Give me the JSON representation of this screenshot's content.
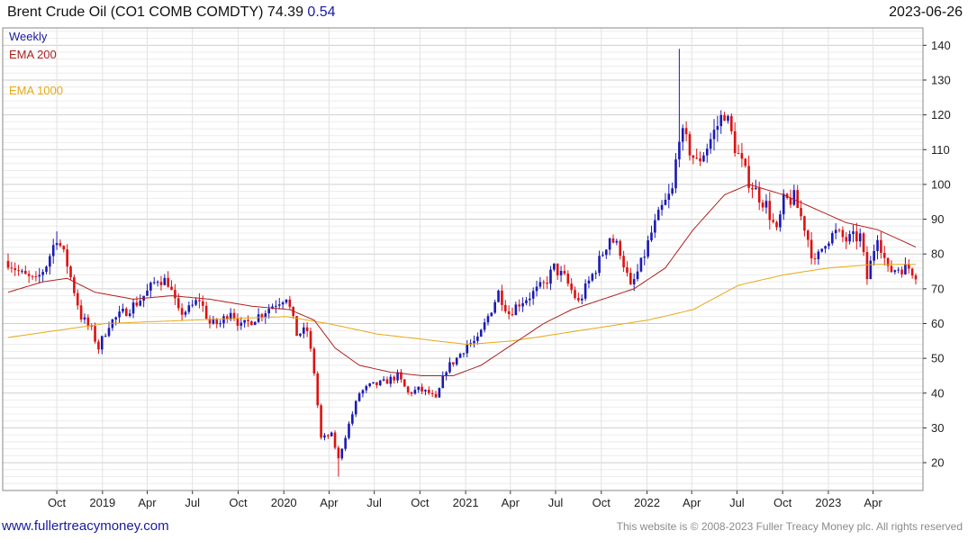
{
  "header": {
    "title": "Brent Crude Oil  (CO1 COMB COMDTY) 74.39",
    "change": "0.54",
    "date": "2023-06-26"
  },
  "footer": {
    "site": "www.fullertreacymoney.com",
    "copyright": "This website is © 2008-2023 Fuller Treacy Money plc. All rights reserved"
  },
  "colors": {
    "up": "#1a1ab4",
    "down": "#dd1111",
    "ema200": "#b02020",
    "ema1000": "#e8a814",
    "grid": "#e4e4e4",
    "axis": "#333333",
    "weekly_label": "#1a1aa0"
  },
  "chart_data": {
    "type": "candlestick",
    "interval": "Weekly",
    "legend": [
      "Weekly",
      "EMA 200",
      "EMA 1000"
    ],
    "legend_position": "top-left",
    "y_axis_side": "right",
    "grid": true,
    "ylim": [
      12,
      145
    ],
    "yticks": [
      20,
      30,
      40,
      50,
      60,
      70,
      80,
      90,
      100,
      110,
      120,
      130,
      140
    ],
    "x_range": [
      "2018-06-25",
      "2023-06-26"
    ],
    "xticks": [
      {
        "date": "2018-10-01",
        "label": "Oct"
      },
      {
        "date": "2019-01-01",
        "label": "2019"
      },
      {
        "date": "2019-04-01",
        "label": "Apr"
      },
      {
        "date": "2019-07-01",
        "label": "Jul"
      },
      {
        "date": "2019-10-01",
        "label": "Oct"
      },
      {
        "date": "2020-01-01",
        "label": "2020"
      },
      {
        "date": "2020-04-01",
        "label": "Apr"
      },
      {
        "date": "2020-07-01",
        "label": "Jul"
      },
      {
        "date": "2020-10-01",
        "label": "Oct"
      },
      {
        "date": "2021-01-01",
        "label": "2021"
      },
      {
        "date": "2021-04-01",
        "label": "Apr"
      },
      {
        "date": "2021-07-01",
        "label": "Jul"
      },
      {
        "date": "2021-10-01",
        "label": "Oct"
      },
      {
        "date": "2022-01-01",
        "label": "2022"
      },
      {
        "date": "2022-04-01",
        "label": "Apr"
      },
      {
        "date": "2022-07-01",
        "label": "Jul"
      },
      {
        "date": "2022-10-01",
        "label": "Oct"
      },
      {
        "date": "2023-01-01",
        "label": "2023"
      },
      {
        "date": "2023-04-01",
        "label": "Apr"
      }
    ],
    "close_anchors": [
      [
        "2018-06-25",
        78
      ],
      [
        "2018-07-23",
        74
      ],
      [
        "2018-08-20",
        72
      ],
      [
        "2018-09-10",
        77
      ],
      [
        "2018-10-01",
        85
      ],
      [
        "2018-10-22",
        77
      ],
      [
        "2018-11-19",
        62
      ],
      [
        "2018-12-10",
        58
      ],
      [
        "2018-12-24",
        53
      ],
      [
        "2019-01-14",
        60
      ],
      [
        "2019-02-11",
        63
      ],
      [
        "2019-03-11",
        66
      ],
      [
        "2019-04-01",
        69
      ],
      [
        "2019-04-22",
        73
      ],
      [
        "2019-05-13",
        72
      ],
      [
        "2019-06-03",
        63
      ],
      [
        "2019-06-24",
        64
      ],
      [
        "2019-07-15",
        67
      ],
      [
        "2019-08-05",
        60
      ],
      [
        "2019-08-26",
        60
      ],
      [
        "2019-09-16",
        64
      ],
      [
        "2019-10-07",
        59
      ],
      [
        "2019-10-28",
        61
      ],
      [
        "2019-11-18",
        63
      ],
      [
        "2019-12-16",
        66
      ],
      [
        "2020-01-06",
        68
      ],
      [
        "2020-01-27",
        57
      ],
      [
        "2020-02-17",
        58
      ],
      [
        "2020-03-02",
        46
      ],
      [
        "2020-03-16",
        27
      ],
      [
        "2020-04-06",
        28
      ],
      [
        "2020-04-20",
        21
      ],
      [
        "2020-05-11",
        31
      ],
      [
        "2020-06-01",
        40
      ],
      [
        "2020-06-22",
        42
      ],
      [
        "2020-07-20",
        43
      ],
      [
        "2020-08-17",
        45
      ],
      [
        "2020-09-07",
        40
      ],
      [
        "2020-09-28",
        41
      ],
      [
        "2020-10-19",
        40
      ],
      [
        "2020-11-02",
        38
      ],
      [
        "2020-11-23",
        47
      ],
      [
        "2020-12-14",
        50
      ],
      [
        "2021-01-04",
        54
      ],
      [
        "2021-01-25",
        55
      ],
      [
        "2021-02-15",
        62
      ],
      [
        "2021-03-08",
        69
      ],
      [
        "2021-03-29",
        63
      ],
      [
        "2021-04-19",
        66
      ],
      [
        "2021-05-10",
        68
      ],
      [
        "2021-06-07",
        71
      ],
      [
        "2021-06-28",
        76
      ],
      [
        "2021-07-19",
        73
      ],
      [
        "2021-08-16",
        66
      ],
      [
        "2021-09-06",
        72
      ],
      [
        "2021-09-27",
        78
      ],
      [
        "2021-10-18",
        85
      ],
      [
        "2021-11-08",
        81
      ],
      [
        "2021-11-29",
        70
      ],
      [
        "2021-12-20",
        77
      ],
      [
        "2022-01-10",
        86
      ],
      [
        "2022-01-31",
        93
      ],
      [
        "2022-02-21",
        98
      ],
      [
        "2022-03-07",
        115
      ],
      [
        "2022-03-21",
        112
      ],
      [
        "2022-04-11",
        106
      ],
      [
        "2022-05-02",
        111
      ],
      [
        "2022-05-23",
        117
      ],
      [
        "2022-06-06",
        121
      ],
      [
        "2022-06-27",
        111
      ],
      [
        "2022-07-18",
        103
      ],
      [
        "2022-08-08",
        98
      ],
      [
        "2022-08-29",
        94
      ],
      [
        "2022-09-19",
        86
      ],
      [
        "2022-10-03",
        95
      ],
      [
        "2022-10-24",
        96
      ],
      [
        "2022-11-14",
        88
      ],
      [
        "2022-12-05",
        77
      ],
      [
        "2022-12-26",
        84
      ],
      [
        "2023-01-16",
        86
      ],
      [
        "2023-02-06",
        84
      ],
      [
        "2023-03-06",
        85
      ],
      [
        "2023-03-20",
        73
      ],
      [
        "2023-04-10",
        86
      ],
      [
        "2023-05-01",
        75
      ],
      [
        "2023-05-22",
        76
      ],
      [
        "2023-06-12",
        76
      ],
      [
        "2023-06-26",
        74.39
      ]
    ],
    "ema200_anchors": [
      [
        "2018-06-25",
        69
      ],
      [
        "2018-09-03",
        72
      ],
      [
        "2018-10-22",
        73
      ],
      [
        "2018-12-17",
        69
      ],
      [
        "2019-03-04",
        67
      ],
      [
        "2019-05-20",
        68
      ],
      [
        "2019-08-05",
        67
      ],
      [
        "2019-10-28",
        65
      ],
      [
        "2020-01-13",
        64
      ],
      [
        "2020-03-02",
        61
      ],
      [
        "2020-04-13",
        53
      ],
      [
        "2020-06-01",
        48
      ],
      [
        "2020-08-03",
        46
      ],
      [
        "2020-10-05",
        45
      ],
      [
        "2020-12-07",
        45
      ],
      [
        "2021-02-01",
        48
      ],
      [
        "2021-04-05",
        54
      ],
      [
        "2021-06-07",
        60
      ],
      [
        "2021-08-02",
        64
      ],
      [
        "2021-10-04",
        67
      ],
      [
        "2021-12-06",
        70
      ],
      [
        "2022-02-07",
        76
      ],
      [
        "2022-04-04",
        87
      ],
      [
        "2022-06-06",
        97
      ],
      [
        "2022-07-25",
        100
      ],
      [
        "2022-10-03",
        97
      ],
      [
        "2022-12-05",
        93
      ],
      [
        "2023-02-06",
        89
      ],
      [
        "2023-04-10",
        87
      ],
      [
        "2023-06-26",
        82
      ]
    ],
    "ema1000_anchors": [
      [
        "2018-06-25",
        56
      ],
      [
        "2019-01-07",
        60
      ],
      [
        "2019-07-01",
        61
      ],
      [
        "2020-01-06",
        62
      ],
      [
        "2020-03-30",
        60
      ],
      [
        "2020-07-06",
        57
      ],
      [
        "2021-01-04",
        54
      ],
      [
        "2021-04-05",
        55
      ],
      [
        "2021-07-05",
        57
      ],
      [
        "2021-10-04",
        59
      ],
      [
        "2022-01-03",
        61
      ],
      [
        "2022-04-04",
        64
      ],
      [
        "2022-07-04",
        71
      ],
      [
        "2022-10-03",
        74
      ],
      [
        "2023-01-02",
        76
      ],
      [
        "2023-04-03",
        77
      ],
      [
        "2023-06-26",
        77
      ]
    ],
    "spikes": [
      {
        "date": "2022-03-07",
        "high": 139
      },
      {
        "date": "2020-04-20",
        "low": 16
      },
      {
        "date": "2018-10-01",
        "high": 86.5
      }
    ]
  }
}
